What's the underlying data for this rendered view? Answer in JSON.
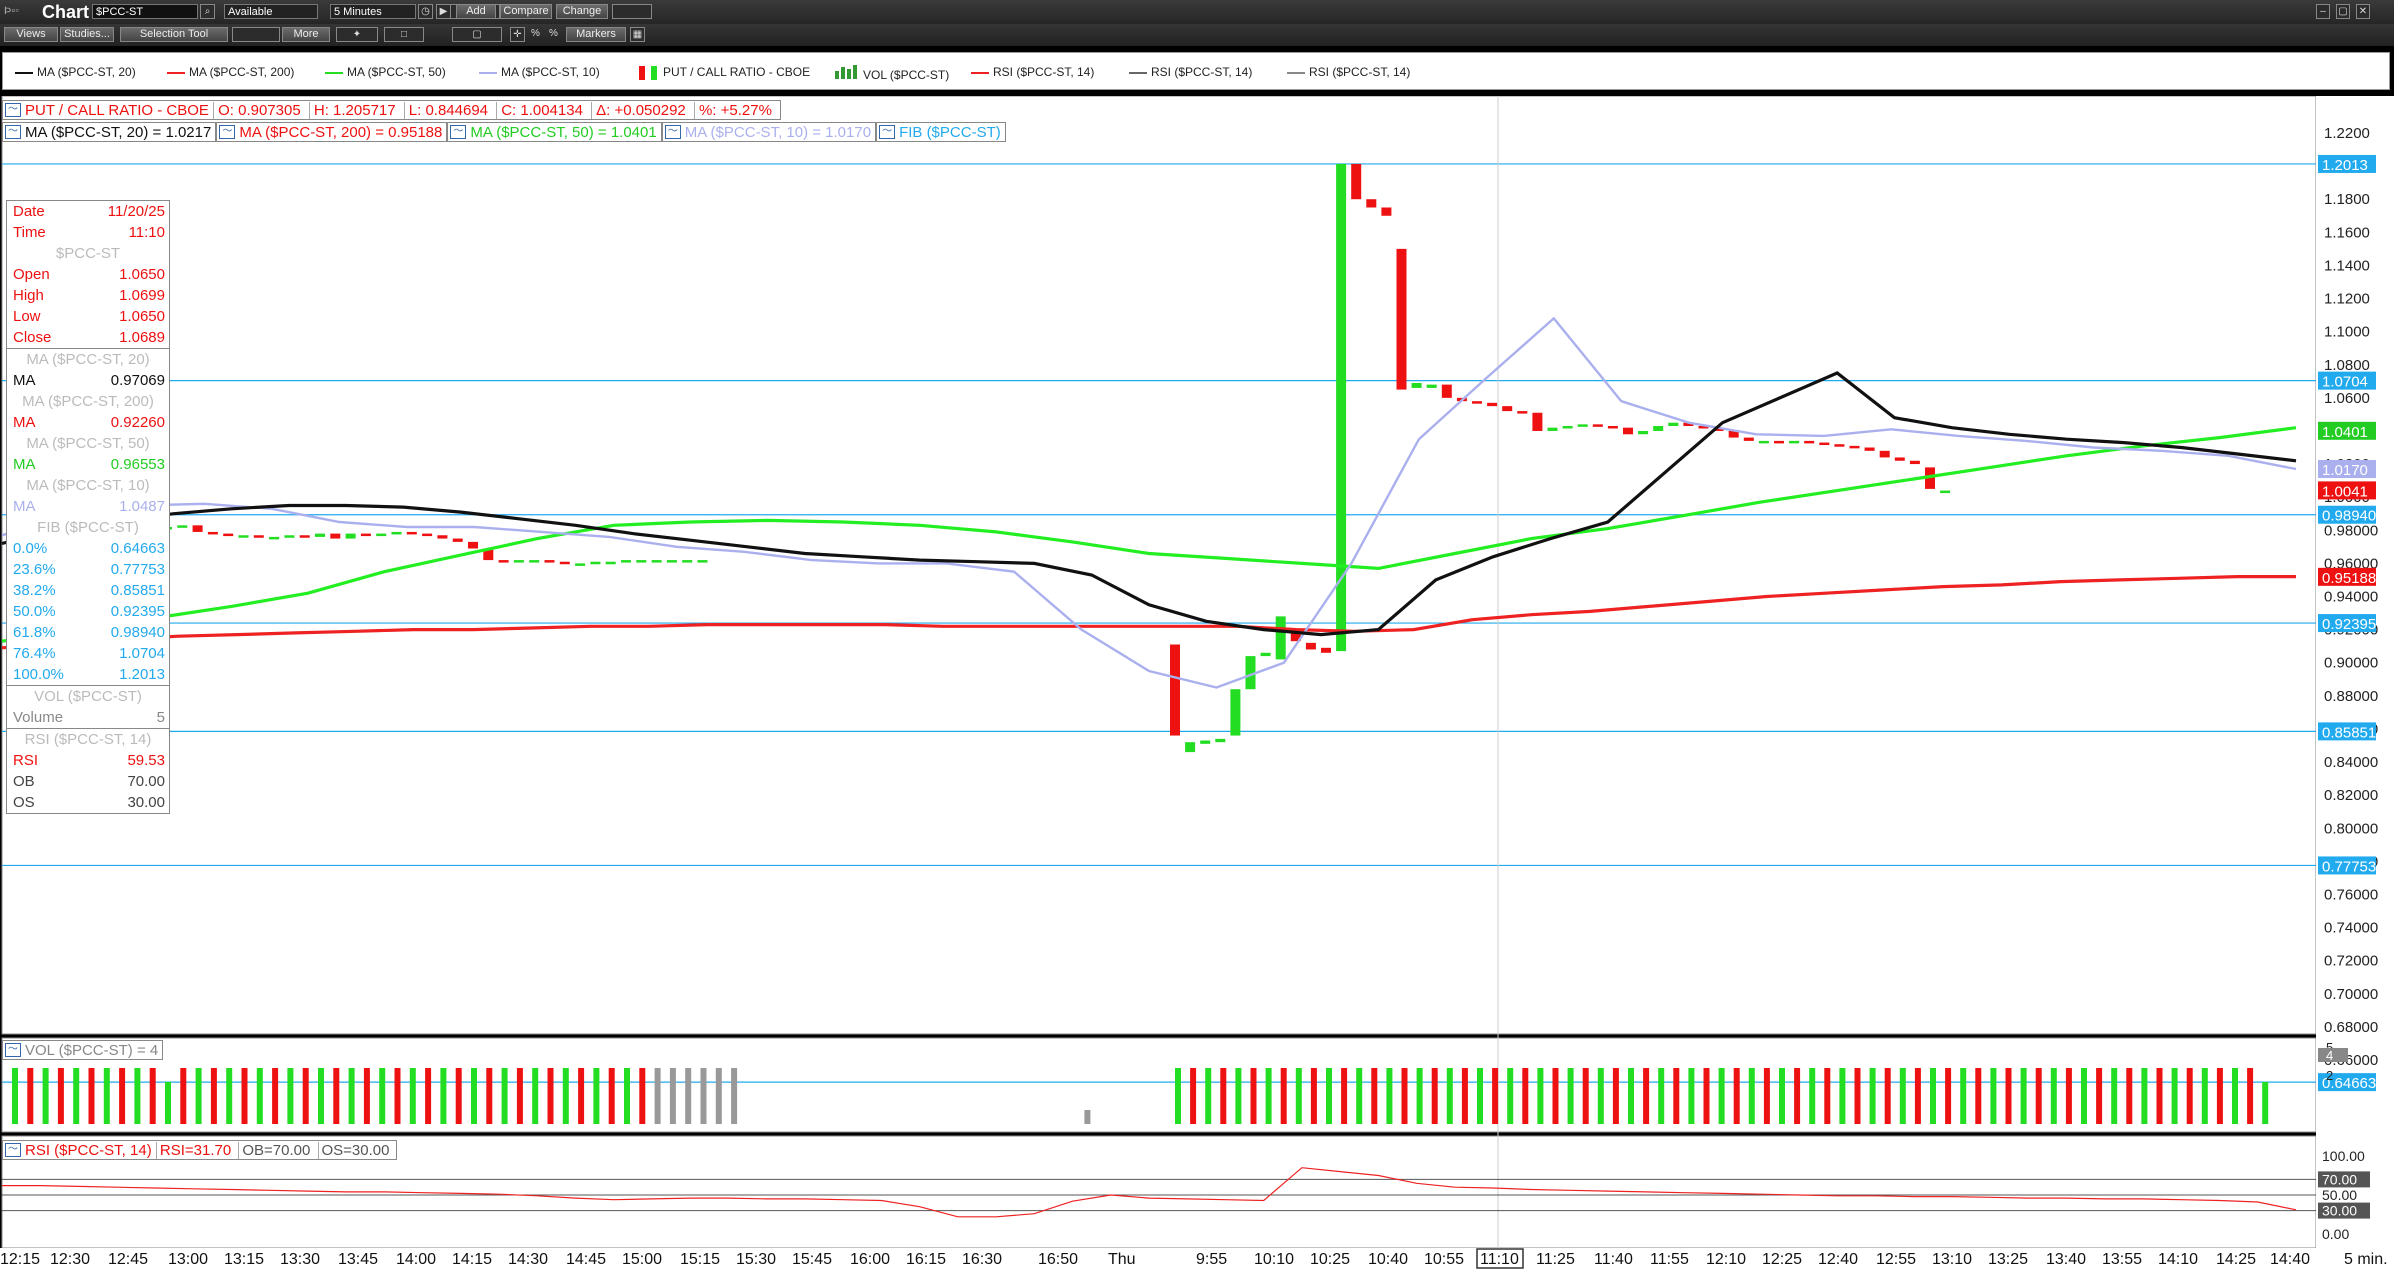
{
  "app": {
    "title": "Chart",
    "symbol": "$PCC-ST",
    "status_select": "Available",
    "interval_select": "5 Minutes"
  },
  "toolbar": {
    "add": "Add",
    "compare": "Compare",
    "change": "Change",
    "views": "Views",
    "studies": "Studies...",
    "selection_tool": "Selection Tool",
    "more": "More",
    "markers": "Markers",
    "pct1": "%",
    "pct2": "%"
  },
  "legend": [
    {
      "label": "MA ($PCC-ST, 20)",
      "color": "#111111",
      "kind": "line"
    },
    {
      "label": "MA ($PCC-ST, 200)",
      "color": "#ee2222",
      "kind": "line"
    },
    {
      "label": "MA ($PCC-ST, 50)",
      "color": "#22dd22",
      "kind": "line"
    },
    {
      "label": "MA ($PCC-ST, 10)",
      "color": "#aab0ee",
      "kind": "line"
    },
    {
      "label": "PUT / CALL RATIO - CBOE",
      "color": "#ee1111",
      "kind": "candle"
    },
    {
      "label": "VOL ($PCC-ST)",
      "color": "#339933",
      "kind": "bars"
    },
    {
      "label": "RSI ($PCC-ST, 14)",
      "color": "#ee2222",
      "kind": "line"
    },
    {
      "label": "RSI ($PCC-ST, 14)",
      "color": "#666666",
      "kind": "line"
    },
    {
      "label": "RSI ($PCC-ST, 14)",
      "color": "#888888",
      "kind": "line"
    }
  ],
  "header": {
    "name": "PUT / CALL RATIO - CBOE",
    "open": "O: 0.907305",
    "high": "H: 1.205717",
    "low": "L: 0.844694",
    "close": "C: 1.004134",
    "delta": "Δ: +0.050292",
    "pct": "%: +5.27%",
    "ma20": "MA ($PCC-ST, 20) = 1.0217",
    "ma200": "MA ($PCC-ST, 200) = 0.95188",
    "ma50": "MA ($PCC-ST, 50) = 1.0401",
    "ma10": "MA ($PCC-ST, 10) = 1.0170",
    "fib": "FIB ($PCC-ST)"
  },
  "databox": {
    "date_label": "Date",
    "date": "11/20/25",
    "time_label": "Time",
    "time": "11:10",
    "symbol": "$PCC-ST",
    "open_label": "Open",
    "open": "1.0650",
    "high_label": "High",
    "high": "1.0699",
    "low_label": "Low",
    "low": "1.0650",
    "close_label": "Close",
    "close": "1.0689",
    "ma20_title": "MA ($PCC-ST, 20)",
    "ma_label": "MA",
    "ma20": "0.97069",
    "ma200_title": "MA ($PCC-ST, 200)",
    "ma200": "0.92260",
    "ma50_title": "MA ($PCC-ST, 50)",
    "ma50": "0.96553",
    "ma10_title": "MA ($PCC-ST, 10)",
    "ma10": "1.0487",
    "fib_title": "FIB ($PCC-ST)",
    "fibs": [
      [
        "0.0%",
        "0.64663"
      ],
      [
        "23.6%",
        "0.77753"
      ],
      [
        "38.2%",
        "0.85851"
      ],
      [
        "50.0%",
        "0.92395"
      ],
      [
        "61.8%",
        "0.98940"
      ],
      [
        "76.4%",
        "1.0704"
      ],
      [
        "100.0%",
        "1.2013"
      ]
    ],
    "vol_title": "VOL ($PCC-ST)",
    "volume_label": "Volume",
    "volume": "5",
    "rsi_title": "RSI ($PCC-ST, 14)",
    "rsi_label": "RSI",
    "rsi": "59.53",
    "ob_label": "OB",
    "ob": "70.00",
    "os_label": "OS",
    "os": "30.00"
  },
  "vol_header": "VOL ($PCC-ST) = 4",
  "rsi_header": {
    "name": "RSI ($PCC-ST, 14)",
    "rsi": "RSI=31.70",
    "ob": "OB=70.00",
    "os": "OS=30.00"
  },
  "price_axis": [
    "1.2200",
    "1.2000",
    "1.1800",
    "1.1600",
    "1.1400",
    "1.1200",
    "1.1000",
    "1.0800",
    "1.0600",
    "1.0400",
    "1.0200",
    "1.0000",
    "0.98000",
    "0.96000",
    "0.94000",
    "0.92000",
    "0.90000",
    "0.88000",
    "0.86000",
    "0.84000",
    "0.82000",
    "0.80000",
    "0.78000",
    "0.76000",
    "0.74000",
    "0.72000",
    "0.70000",
    "0.68000",
    "0.66000"
  ],
  "price_tags": [
    {
      "text": "1.2013",
      "bg": "#22aaee",
      "fg": "#ffffff",
      "v": 1.2013
    },
    {
      "text": "1.0704",
      "bg": "#22aaee",
      "fg": "#ffffff",
      "v": 1.0704
    },
    {
      "text": "1.0401",
      "bg": "#22cc22",
      "fg": "#ffffff",
      "v": 1.0401
    },
    {
      "text": "1.0170",
      "bg": "#aab0ee",
      "fg": "#ffffff",
      "v": 1.017
    },
    {
      "text": "1.0041",
      "bg": "#ee1111",
      "fg": "#ffffff",
      "v": 1.0041
    },
    {
      "text": "0.98940",
      "bg": "#22aaee",
      "fg": "#ffffff",
      "v": 0.9894
    },
    {
      "text": "0.95188",
      "bg": "#ee1111",
      "fg": "#ffffff",
      "v": 0.95188
    },
    {
      "text": "0.92395",
      "bg": "#22aaee",
      "fg": "#ffffff",
      "v": 0.92395
    },
    {
      "text": "0.85851",
      "bg": "#22aaee",
      "fg": "#ffffff",
      "v": 0.85851
    },
    {
      "text": "0.77753",
      "bg": "#22aaee",
      "fg": "#ffffff",
      "v": 0.77753
    },
    {
      "text": "0.64663",
      "bg": "#22aaee",
      "fg": "#ffffff",
      "v": 0.64663
    }
  ],
  "vol_axis": [
    "5",
    "4",
    "2"
  ],
  "rsi_axis": [
    "100.00",
    "70.00",
    "50.00",
    "30.00",
    "0.00"
  ],
  "x_axis": [
    "12:15",
    "12:30",
    "12:45",
    "13:00",
    "13:15",
    "13:30",
    "13:45",
    "14:00",
    "14:15",
    "14:30",
    "14:45",
    "15:00",
    "15:15",
    "15:30",
    "15:45",
    "16:00",
    "16:15",
    "16:30",
    "16:50",
    "Thu",
    "9:55",
    "10:10",
    "10:25",
    "10:40",
    "10:55",
    "11:10",
    "11:25",
    "11:40",
    "11:55",
    "12:10",
    "12:25",
    "12:40",
    "12:55",
    "13:10",
    "13:25",
    "13:40",
    "13:55",
    "14:10",
    "14:25",
    "14:40"
  ],
  "x_unit": "5 min.",
  "fib_levels": [
    1.2013,
    1.0704,
    0.9894,
    0.92395,
    0.85851,
    0.77753,
    0.64663
  ],
  "candles": [
    [
      0.993,
      0.988
    ],
    [
      0.989,
      0.991
    ],
    [
      0.991,
      0.993
    ],
    [
      0.993,
      0.995
    ],
    [
      0.995,
      0.996
    ],
    [
      0.996,
      0.994
    ],
    [
      0.994,
      0.992
    ],
    [
      0.992,
      0.984
    ],
    [
      0.984,
      0.982
    ],
    [
      0.982,
      0.981
    ],
    [
      0.981,
      0.982
    ],
    [
      0.982,
      0.983
    ],
    [
      0.983,
      0.979
    ],
    [
      0.979,
      0.978
    ],
    [
      0.978,
      0.977
    ],
    [
      0.977,
      0.977
    ],
    [
      0.977,
      0.976
    ],
    [
      0.976,
      0.976
    ],
    [
      0.976,
      0.977
    ],
    [
      0.977,
      0.976
    ],
    [
      0.976,
      0.978
    ],
    [
      0.978,
      0.975
    ],
    [
      0.975,
      0.978
    ],
    [
      0.978,
      0.977
    ],
    [
      0.977,
      0.978
    ],
    [
      0.978,
      0.979
    ],
    [
      0.979,
      0.978
    ],
    [
      0.978,
      0.977
    ],
    [
      0.977,
      0.975
    ],
    [
      0.975,
      0.973
    ],
    [
      0.973,
      0.969
    ],
    [
      0.969,
      0.962
    ],
    [
      0.962,
      0.961
    ],
    [
      0.961,
      0.962
    ],
    [
      0.962,
      0.962
    ],
    [
      0.962,
      0.961
    ],
    [
      0.961,
      0.96
    ],
    [
      0.96,
      0.96
    ],
    [
      0.96,
      0.961
    ],
    [
      0.961,
      0.961
    ],
    [
      0.961,
      0.962
    ],
    [
      0.962,
      0.962
    ],
    [
      0.962,
      0.962
    ],
    [
      0.962,
      0.962
    ],
    [
      0.962,
      0.962
    ],
    [
      0.962,
      0.962
    ],
    [
      0.911,
      0.856
    ],
    [
      0.846,
      0.852
    ],
    [
      0.851,
      0.853
    ],
    [
      0.852,
      0.854
    ],
    [
      0.856,
      0.884
    ],
    [
      0.884,
      0.904
    ],
    [
      0.904,
      0.906
    ],
    [
      0.902,
      0.928
    ],
    [
      0.918,
      0.913
    ],
    [
      0.912,
      0.908
    ],
    [
      0.909,
      0.906
    ],
    [
      0.907,
      1.2013
    ],
    [
      1.2013,
      1.18
    ],
    [
      1.18,
      1.175
    ],
    [
      1.175,
      1.17
    ],
    [
      1.15,
      1.065
    ],
    [
      1.066,
      1.069
    ],
    [
      1.066,
      1.068
    ],
    [
      1.068,
      1.06
    ],
    [
      1.06,
      1.058
    ],
    [
      1.058,
      1.057
    ],
    [
      1.057,
      1.055
    ],
    [
      1.055,
      1.052
    ],
    [
      1.052,
      1.051
    ],
    [
      1.051,
      1.04
    ],
    [
      1.04,
      1.042
    ],
    [
      1.042,
      1.043
    ],
    [
      1.043,
      1.044
    ],
    [
      1.044,
      1.043
    ],
    [
      1.043,
      1.042
    ],
    [
      1.042,
      1.038
    ],
    [
      1.038,
      1.04
    ],
    [
      1.04,
      1.043
    ],
    [
      1.043,
      1.045
    ],
    [
      1.045,
      1.043
    ],
    [
      1.043,
      1.042
    ],
    [
      1.042,
      1.04
    ],
    [
      1.04,
      1.036
    ],
    [
      1.036,
      1.034
    ],
    [
      1.034,
      1.034
    ],
    [
      1.034,
      1.033
    ],
    [
      1.033,
      1.034
    ],
    [
      1.034,
      1.033
    ],
    [
      1.033,
      1.032
    ],
    [
      1.032,
      1.031
    ],
    [
      1.031,
      1.03
    ],
    [
      1.03,
      1.028
    ],
    [
      1.028,
      1.024
    ],
    [
      1.024,
      1.022
    ],
    [
      1.022,
      1.02
    ],
    [
      1.018,
      1.005
    ],
    [
      1.004,
      1.004
    ]
  ],
  "ma20": [
    0.972,
    0.981,
    0.986,
    0.99,
    0.993,
    0.995,
    0.995,
    0.994,
    0.991,
    0.987,
    0.983,
    0.978,
    0.974,
    0.97,
    0.966,
    0.964,
    0.962,
    0.961,
    0.96,
    0.953,
    0.935,
    0.925,
    0.92,
    0.917,
    0.92,
    0.95,
    0.964,
    0.975,
    0.985,
    1.015,
    1.045,
    1.06,
    1.075,
    1.048,
    1.042,
    1.038,
    1.035,
    1.033,
    1.03,
    1.026,
    1.022
  ],
  "ma200": [
    0.909,
    0.912,
    0.914,
    0.916,
    0.917,
    0.918,
    0.919,
    0.92,
    0.92,
    0.921,
    0.922,
    0.922,
    0.923,
    0.923,
    0.923,
    0.923,
    0.922,
    0.922,
    0.922,
    0.922,
    0.922,
    0.922,
    0.92,
    0.919,
    0.92,
    0.926,
    0.929,
    0.931,
    0.934,
    0.937,
    0.94,
    0.942,
    0.944,
    0.946,
    0.947,
    0.949,
    0.95,
    0.951,
    0.952,
    0.952
  ],
  "ma50": [
    0.913,
    0.92,
    0.927,
    0.934,
    0.942,
    0.955,
    0.965,
    0.975,
    0.983,
    0.985,
    0.986,
    0.985,
    0.983,
    0.979,
    0.973,
    0.966,
    0.963,
    0.96,
    0.957,
    0.966,
    0.975,
    0.981,
    0.989,
    0.997,
    1.004,
    1.011,
    1.018,
    1.025,
    1.031,
    1.036,
    1.042
  ],
  "ma10": [
    0.977,
    0.99,
    0.995,
    0.996,
    0.993,
    0.985,
    0.982,
    0.982,
    0.979,
    0.976,
    0.97,
    0.967,
    0.962,
    0.96,
    0.96,
    0.955,
    0.92,
    0.895,
    0.885,
    0.9,
    0.96,
    1.035,
    1.072,
    1.108,
    1.058,
    1.045,
    1.038,
    1.037,
    1.041,
    1.037,
    1.034,
    1.03,
    1.028,
    1.025,
    1.017
  ],
  "volume": [
    4,
    4,
    4,
    4,
    4,
    4,
    4,
    4,
    4,
    4,
    3,
    4,
    4,
    4,
    4,
    4,
    4,
    4,
    4,
    4,
    4,
    4,
    4,
    4,
    4,
    4,
    4,
    4,
    4,
    4,
    4,
    4,
    4,
    4,
    4,
    4,
    4,
    4,
    4,
    4,
    4,
    4,
    4,
    4,
    4,
    4,
    4,
    4,
    1,
    0,
    0,
    0,
    0,
    0,
    4,
    4,
    4,
    4,
    4,
    4,
    4,
    4,
    4,
    4,
    4,
    4,
    4,
    4,
    4,
    4,
    4,
    4,
    4,
    4,
    4,
    4,
    4,
    4,
    4,
    4,
    4,
    4,
    4,
    4,
    4,
    4,
    4,
    4,
    4,
    4,
    4,
    4,
    4,
    4,
    4,
    4,
    4,
    4,
    4,
    4,
    4,
    4,
    4,
    4,
    4,
    4,
    4,
    4,
    4,
    4,
    4,
    4,
    4,
    4,
    4,
    4,
    4,
    4,
    4,
    4,
    4,
    4,
    4,
    4,
    4,
    4,
    3
  ],
  "rsi": [
    62,
    62,
    61,
    60,
    59,
    58,
    57,
    56,
    55,
    54,
    54,
    53,
    52,
    51,
    49,
    46,
    44,
    45,
    46,
    46,
    45,
    45,
    44,
    43,
    35,
    22,
    22,
    26,
    42,
    50,
    46,
    45,
    44,
    43,
    85,
    80,
    75,
    65,
    60,
    59,
    57,
    56,
    55,
    54,
    53,
    52,
    51,
    50,
    49,
    49,
    48,
    48,
    47,
    46,
    46,
    45,
    45,
    44,
    43,
    41,
    31
  ]
}
